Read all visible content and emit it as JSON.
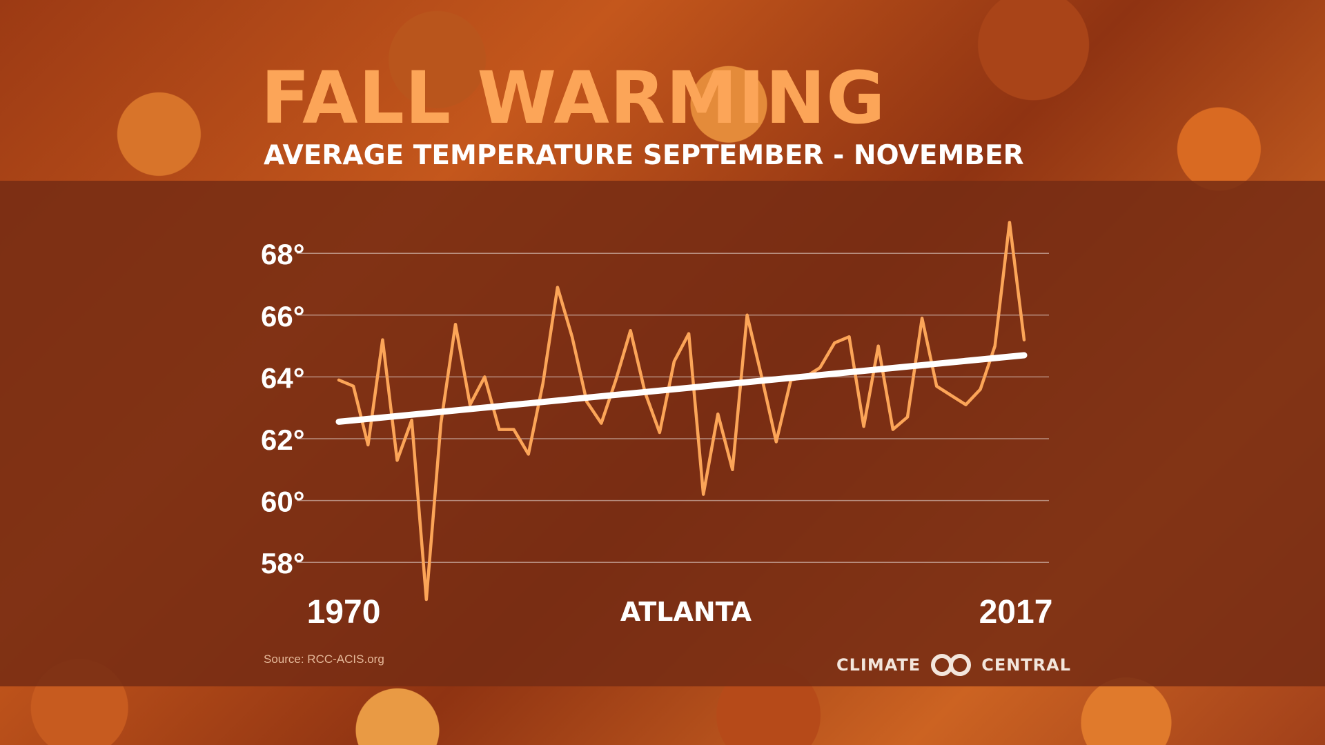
{
  "title": "FALL WARMING",
  "subtitle": "AVERAGE TEMPERATURE SEPTEMBER - NOVEMBER",
  "source": "Source: RCC-ACIS.org",
  "brand": {
    "left": "CLIMATE",
    "right": "CENTRAL",
    "icon": "interlocking-rings-icon"
  },
  "colors": {
    "title": "#fca558",
    "series": "#fca558",
    "trend": "#ffffff",
    "band": "#762c14"
  },
  "chart_data": {
    "type": "line",
    "location": "ATLANTA",
    "x_start_label": "1970",
    "x_end_label": "2017",
    "ylim": [
      57,
      69.5
    ],
    "yticks": [
      58,
      60,
      62,
      64,
      66,
      68
    ],
    "ytick_labels": [
      "58°",
      "60°",
      "62°",
      "64°",
      "66°",
      "68°"
    ],
    "grid": true,
    "series": [
      {
        "x": [
          1970,
          1971,
          1972,
          1973,
          1974,
          1975,
          1976,
          1977,
          1978,
          1979,
          1980,
          1981,
          1982,
          1983,
          1984,
          1985,
          1986,
          1987,
          1988,
          1989,
          1990,
          1991,
          1992,
          1993,
          1994,
          1995,
          1996,
          1997,
          1998,
          1999,
          2000,
          2001,
          2002,
          2003,
          2004,
          2005,
          2006,
          2007,
          2008,
          2009,
          2010,
          2011,
          2012,
          2013,
          2014,
          2015,
          2016,
          2017
        ],
        "values": [
          63.9,
          63.7,
          61.8,
          65.2,
          61.3,
          62.6,
          56.8,
          62.5,
          65.7,
          63.1,
          64.0,
          62.3,
          62.3,
          61.5,
          63.8,
          66.9,
          65.3,
          63.2,
          62.5,
          63.9,
          65.5,
          63.5,
          62.2,
          64.5,
          65.4,
          60.2,
          62.8,
          61.0,
          66.0,
          64.0,
          61.9,
          63.9,
          64.0,
          64.3,
          65.1,
          65.3,
          62.4,
          65.0,
          62.3,
          62.7,
          65.9,
          63.7,
          63.4,
          63.1,
          63.6,
          65.0,
          69.0,
          65.2
        ]
      },
      {
        "x": [
          1970,
          2017
        ],
        "values": [
          62.55,
          64.7
        ]
      }
    ]
  }
}
